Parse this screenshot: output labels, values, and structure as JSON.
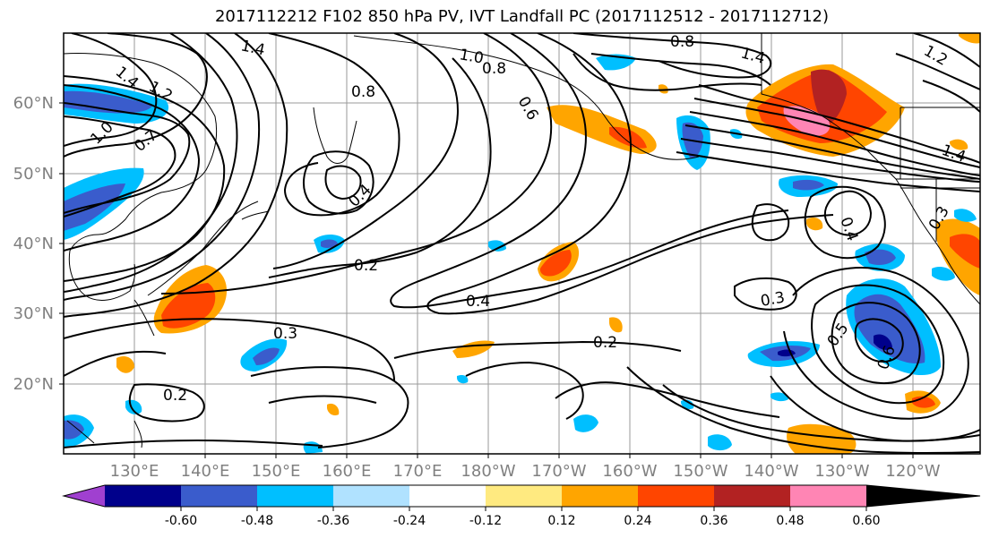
{
  "title": "2017112212 F102 850 hPa PV, IVT Landfall PC (2017112512 - 2017112712)",
  "map": {
    "lat_labels": [
      "60°N",
      "50°N",
      "40°N",
      "30°N",
      "20°N"
    ],
    "lon_labels": [
      "130°E",
      "140°E",
      "150°E",
      "160°E",
      "170°E",
      "180°W",
      "170°W",
      "160°W",
      "150°W",
      "140°W",
      "130°W",
      "120°W"
    ],
    "contour_labels": [
      "1.4",
      "1.4",
      "1.0",
      "0.8",
      "0.8",
      "1.2",
      "1.4",
      "0.8",
      "0.6",
      "1.0",
      "0.7",
      "0.4",
      "0.2",
      "0.4",
      "0.3",
      "0.2",
      "0.3",
      "0.2",
      "0.4",
      "0.3",
      "0.5",
      "0.6",
      "1.4",
      "1.2"
    ]
  },
  "colorbar": {
    "colors": [
      "#a040d0",
      "#00008b",
      "#3a5ccc",
      "#00bfff",
      "#b0e2ff",
      "#ffffff",
      "#ffea80",
      "#ffa500",
      "#ff4500",
      "#b22222",
      "#ff85b4"
    ],
    "tick_labels": [
      "-0.60",
      "-0.48",
      "-0.36",
      "-0.24",
      "-0.12",
      "0.12",
      "0.24",
      "0.36",
      "0.48",
      "0.60"
    ]
  }
}
